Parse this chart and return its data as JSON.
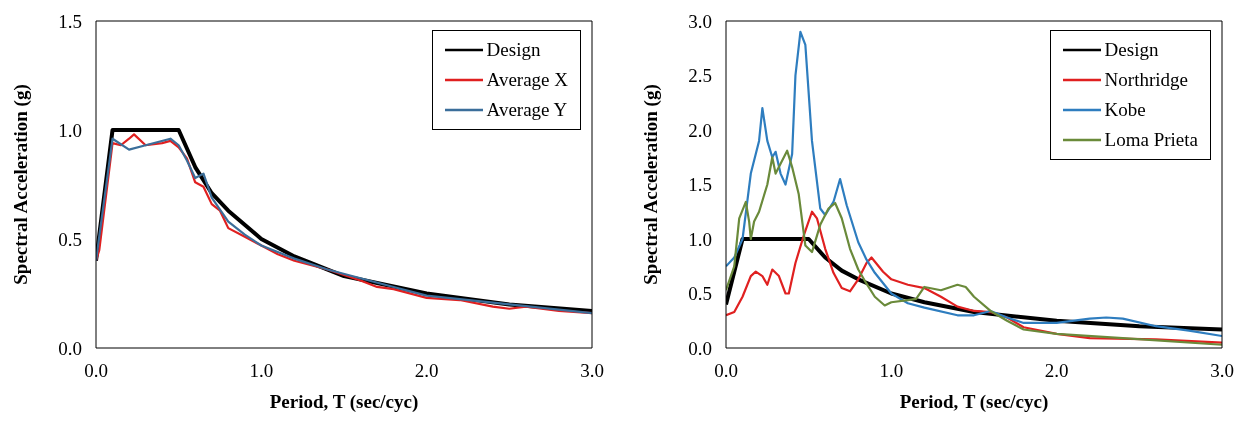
{
  "chart_data": [
    {
      "type": "line",
      "xlabel": "Period, T (sec/cyc)",
      "ylabel": "Spectral Acceleration (g)",
      "xlim": [
        0,
        3
      ],
      "xticks": [
        {
          "value": 0,
          "label": "0.0"
        },
        {
          "value": 1,
          "label": "1.0"
        },
        {
          "value": 2,
          "label": "2.0"
        },
        {
          "value": 3,
          "label": "3.0"
        }
      ],
      "ylim": [
        0,
        1.5
      ],
      "yticks": [
        {
          "value": 0,
          "label": "0.0"
        },
        {
          "value": 0.5,
          "label": "0.5"
        },
        {
          "value": 1,
          "label": "1.0"
        },
        {
          "value": 1.5,
          "label": "1.5"
        }
      ],
      "legend": "top right",
      "marker": "none",
      "line_style": "solid",
      "series": [
        {
          "name": "Design",
          "color": "#000000",
          "x": [
            0,
            0.1,
            0.5,
            0.6,
            0.7,
            0.8,
            1,
            1.2,
            1.5,
            2,
            2.5,
            3
          ],
          "values": [
            0.4,
            1,
            1,
            0.83,
            0.71,
            0.63,
            0.5,
            0.42,
            0.33,
            0.25,
            0.2,
            0.17
          ]
        },
        {
          "name": "Average X",
          "color": "#e02020",
          "x": [
            0,
            0.02,
            0.1,
            0.15,
            0.2,
            0.23,
            0.3,
            0.4,
            0.45,
            0.5,
            0.55,
            0.6,
            0.65,
            0.7,
            0.75,
            0.8,
            0.9,
            1,
            1.1,
            1.2,
            1.4,
            1.6,
            1.7,
            1.8,
            2,
            2.2,
            2.4,
            2.5,
            2.6,
            2.8,
            3
          ],
          "values": [
            0.4,
            0.45,
            0.94,
            0.93,
            0.96,
            0.98,
            0.93,
            0.94,
            0.95,
            0.92,
            0.87,
            0.76,
            0.74,
            0.66,
            0.63,
            0.55,
            0.51,
            0.47,
            0.43,
            0.4,
            0.36,
            0.31,
            0.28,
            0.27,
            0.23,
            0.22,
            0.19,
            0.18,
            0.19,
            0.17,
            0.16
          ]
        },
        {
          "name": "Average Y",
          "color": "#3b6e9a",
          "x": [
            0,
            0.1,
            0.2,
            0.3,
            0.45,
            0.5,
            0.55,
            0.6,
            0.65,
            0.7,
            0.8,
            0.9,
            1,
            1.2,
            1.4,
            1.6,
            1.8,
            2,
            2.5,
            3
          ],
          "values": [
            0.4,
            0.96,
            0.91,
            0.93,
            0.96,
            0.93,
            0.86,
            0.78,
            0.8,
            0.69,
            0.58,
            0.52,
            0.47,
            0.41,
            0.36,
            0.32,
            0.28,
            0.24,
            0.2,
            0.16
          ]
        }
      ]
    },
    {
      "type": "line",
      "xlabel": "Period, T (sec/cyc)",
      "ylabel": "Spectral Acceleration (g)",
      "xlim": [
        0,
        3
      ],
      "xticks": [
        {
          "value": 0,
          "label": "0.0"
        },
        {
          "value": 1,
          "label": "1.0"
        },
        {
          "value": 2,
          "label": "2.0"
        },
        {
          "value": 3,
          "label": "3.0"
        }
      ],
      "ylim": [
        0,
        3
      ],
      "yticks": [
        {
          "value": 0,
          "label": "0.0"
        },
        {
          "value": 0.5,
          "label": "0.5"
        },
        {
          "value": 1,
          "label": "1.0"
        },
        {
          "value": 1.5,
          "label": "1.5"
        },
        {
          "value": 2,
          "label": "2.0"
        },
        {
          "value": 2.5,
          "label": "2.5"
        },
        {
          "value": 3,
          "label": "3.0"
        }
      ],
      "legend": "top right",
      "marker": "none",
      "line_style": "solid",
      "series": [
        {
          "name": "Design",
          "color": "#000000",
          "x": [
            0,
            0.1,
            0.5,
            0.6,
            0.7,
            0.8,
            1,
            1.2,
            1.5,
            2,
            2.5,
            3
          ],
          "values": [
            0.4,
            1,
            1,
            0.83,
            0.71,
            0.63,
            0.5,
            0.42,
            0.33,
            0.25,
            0.2,
            0.17
          ]
        },
        {
          "name": "Northridge",
          "color": "#e02020",
          "x": [
            0,
            0.05,
            0.1,
            0.15,
            0.18,
            0.22,
            0.25,
            0.28,
            0.32,
            0.36,
            0.38,
            0.42,
            0.47,
            0.52,
            0.55,
            0.6,
            0.65,
            0.7,
            0.75,
            0.8,
            0.85,
            0.88,
            0.95,
            1,
            1.1,
            1.2,
            1.3,
            1.4,
            1.5,
            1.6,
            1.7,
            1.8,
            2,
            2.2,
            2.6,
            3
          ],
          "values": [
            0.3,
            0.33,
            0.47,
            0.66,
            0.7,
            0.66,
            0.58,
            0.72,
            0.66,
            0.5,
            0.5,
            0.78,
            1.03,
            1.25,
            1.19,
            0.91,
            0.69,
            0.55,
            0.52,
            0.63,
            0.78,
            0.83,
            0.7,
            0.63,
            0.58,
            0.55,
            0.47,
            0.38,
            0.34,
            0.33,
            0.28,
            0.19,
            0.13,
            0.09,
            0.08,
            0.05
          ]
        },
        {
          "name": "Kobe",
          "color": "#2e7dbf",
          "x": [
            0,
            0.05,
            0.1,
            0.15,
            0.2,
            0.22,
            0.25,
            0.28,
            0.3,
            0.33,
            0.36,
            0.4,
            0.42,
            0.45,
            0.48,
            0.52,
            0.57,
            0.6,
            0.65,
            0.69,
            0.73,
            0.8,
            0.85,
            0.9,
            1,
            1.1,
            1.2,
            1.4,
            1.5,
            1.6,
            1.7,
            1.8,
            2,
            2.2,
            2.3,
            2.4,
            2.6,
            2.8,
            3
          ],
          "values": [
            0.75,
            0.83,
            1,
            1.6,
            1.9,
            2.2,
            1.9,
            1.75,
            1.8,
            1.6,
            1.5,
            1.78,
            2.5,
            2.9,
            2.78,
            1.9,
            1.28,
            1.22,
            1.34,
            1.55,
            1.31,
            0.97,
            0.81,
            0.69,
            0.5,
            0.41,
            0.37,
            0.3,
            0.3,
            0.34,
            0.28,
            0.23,
            0.23,
            0.27,
            0.28,
            0.27,
            0.2,
            0.16,
            0.11
          ]
        },
        {
          "name": "Loma Prieta",
          "color": "#6a8a3a",
          "x": [
            0,
            0.05,
            0.08,
            0.12,
            0.14,
            0.15,
            0.17,
            0.2,
            0.25,
            0.28,
            0.3,
            0.33,
            0.37,
            0.4,
            0.44,
            0.48,
            0.52,
            0.57,
            0.62,
            0.66,
            0.7,
            0.75,
            0.8,
            0.85,
            0.9,
            0.96,
            1,
            1.1,
            1.15,
            1.2,
            1.3,
            1.4,
            1.45,
            1.5,
            1.6,
            1.7,
            1.8,
            2,
            2.4,
            3
          ],
          "values": [
            0.53,
            0.75,
            1.19,
            1.34,
            1.16,
            1,
            1.16,
            1.25,
            1.5,
            1.75,
            1.6,
            1.69,
            1.81,
            1.66,
            1.41,
            0.94,
            0.88,
            1.13,
            1.28,
            1.33,
            1.19,
            0.91,
            0.72,
            0.59,
            0.47,
            0.39,
            0.42,
            0.44,
            0.45,
            0.56,
            0.53,
            0.58,
            0.56,
            0.47,
            0.34,
            0.25,
            0.17,
            0.13,
            0.09,
            0.03
          ]
        }
      ]
    }
  ]
}
